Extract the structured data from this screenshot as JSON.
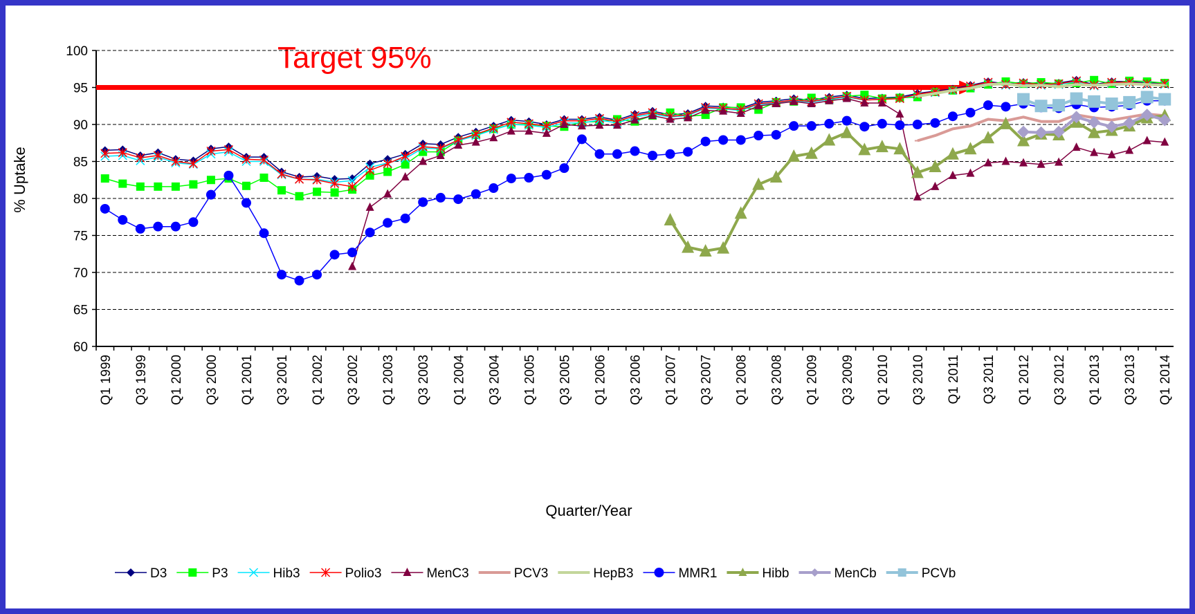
{
  "chart_data": {
    "type": "line",
    "annotation": "Target 95%",
    "target": 95,
    "x_label": "Quarter/Year",
    "y_label": "% Uptake",
    "ylim": [
      60,
      100
    ],
    "yticks": [
      60,
      65,
      70,
      75,
      80,
      85,
      90,
      95,
      100
    ],
    "grid": true,
    "legend": "bottom",
    "categories": [
      "Q1 1999",
      null,
      "Q3 1999",
      null,
      "Q1 2000",
      null,
      "Q3 2000",
      null,
      "Q1 2001",
      null,
      "Q3 2001",
      null,
      "Q1 2002",
      null,
      "Q3 2002",
      null,
      "Q1 2003",
      null,
      "Q3 2003",
      null,
      "Q1 2004",
      null,
      "Q3 2004",
      null,
      "Q1 2005",
      null,
      "Q3 2005",
      null,
      "Q1 2006",
      null,
      "Q3 2006",
      null,
      "Q1 2007",
      null,
      "Q3 2007",
      null,
      "Q1 2008",
      null,
      "Q3 2008",
      null,
      "Q1 2009",
      null,
      "Q3 2009",
      null,
      "Q1 2010",
      null,
      "Q3 2010",
      null,
      "Q1 2011",
      null,
      "Q3 2011",
      null,
      "Q1 2012",
      null,
      "Q3 2012",
      null,
      "Q1 2013",
      null,
      "Q3 2013",
      null,
      "Q1 2014"
    ],
    "series": [
      {
        "name": "D3",
        "color": "#000080",
        "marker": "diamond",
        "width": 1.5,
        "values": [
          86.5,
          86.6,
          85.8,
          86.2,
          85.3,
          85.1,
          86.7,
          87.0,
          85.6,
          85.6,
          83.6,
          82.9,
          83.0,
          82.6,
          82.7,
          84.7,
          85.3,
          86.0,
          87.4,
          87.3,
          88.3,
          89.0,
          89.8,
          90.6,
          90.4,
          90.0,
          90.7,
          90.7,
          91.0,
          90.6,
          91.4,
          91.8,
          91.3,
          91.5,
          92.5,
          92.4,
          92.2,
          93.0,
          93.2,
          93.5,
          93.3,
          93.7,
          94.0,
          93.5,
          93.6,
          93.7,
          94.2,
          94.5,
          94.8,
          95.3,
          95.8,
          95.5,
          95.7,
          95.5,
          95.6,
          96.0,
          95.4,
          95.8,
          95.8,
          95.6,
          95.6
        ]
      },
      {
        "name": "P3",
        "color": "#00ff00",
        "marker": "square",
        "width": 1.5,
        "values": [
          82.7,
          82.0,
          81.6,
          81.6,
          81.6,
          81.9,
          82.5,
          82.7,
          81.7,
          82.8,
          81.1,
          80.3,
          80.9,
          80.8,
          81.2,
          83.1,
          83.6,
          84.6,
          86.3,
          86.3,
          87.8,
          88.6,
          89.4,
          90.0,
          90.0,
          89.8,
          89.7,
          90.3,
          90.4,
          90.7,
          90.4,
          91.2,
          91.6,
          91.1,
          91.3,
          92.3,
          92.3,
          92.0,
          93.0,
          93.1,
          93.6,
          93.3,
          93.8,
          94.0,
          93.5,
          93.6,
          93.7,
          94.4,
          94.6,
          94.9,
          95.4,
          95.8,
          95.5,
          95.7,
          95.5,
          95.6,
          96.0,
          95.5,
          95.9,
          95.8,
          95.6
        ]
      },
      {
        "name": "Hib3",
        "color": "#00e5ff",
        "marker": "x",
        "width": 1.5,
        "values": [
          85.7,
          85.8,
          85.1,
          85.6,
          84.8,
          84.6,
          86.0,
          86.3,
          85.0,
          85.0,
          83.2,
          82.6,
          82.6,
          82.2,
          82.4,
          84.2,
          84.8,
          85.4,
          86.8,
          86.7,
          87.8,
          88.5,
          89.3,
          90.0,
          89.9,
          89.6,
          90.2,
          90.2,
          90.6,
          90.2,
          91.0,
          91.4,
          91.0,
          91.2,
          92.2,
          92.1,
          91.9,
          92.7,
          92.9,
          93.2,
          93.0,
          93.4,
          93.7,
          93.3,
          93.4,
          93.5,
          94.0,
          94.3,
          94.6,
          95.1,
          95.6,
          95.3,
          95.5,
          95.3,
          95.4,
          95.8,
          95.2,
          95.6,
          95.6,
          95.4,
          95.4
        ]
      },
      {
        "name": "Polio3",
        "color": "#ff0000",
        "marker": "star",
        "width": 1.5,
        "values": [
          86.1,
          86.2,
          85.5,
          85.8,
          85.0,
          84.7,
          86.4,
          86.6,
          85.3,
          85.2,
          83.3,
          82.6,
          82.5,
          82.0,
          81.6,
          83.8,
          84.7,
          85.7,
          87.0,
          86.8,
          87.9,
          88.7,
          89.5,
          90.3,
          90.1,
          89.8,
          90.5,
          90.5,
          90.8,
          90.4,
          91.2,
          91.6,
          91.1,
          91.3,
          92.3,
          92.2,
          92.0,
          92.8,
          93.0,
          93.3,
          93.1,
          93.5,
          93.8,
          93.3,
          93.4,
          93.5,
          94.1,
          94.4,
          94.7,
          95.2,
          95.7,
          95.4,
          95.6,
          95.4,
          95.5,
          95.9,
          95.3,
          95.7,
          95.7,
          95.5,
          95.5
        ]
      },
      {
        "name": "MenC3",
        "color": "#800040",
        "marker": "triangle",
        "width": 1.5,
        "values": [
          null,
          null,
          null,
          null,
          null,
          null,
          null,
          null,
          null,
          null,
          null,
          null,
          null,
          null,
          70.8,
          78.8,
          80.6,
          82.9,
          85.0,
          85.8,
          87.2,
          87.6,
          88.2,
          89.1,
          89.1,
          88.8,
          90.0,
          89.8,
          89.9,
          89.9,
          90.6,
          91.2,
          90.7,
          90.9,
          91.9,
          91.8,
          91.5,
          92.5,
          92.8,
          93.1,
          92.8,
          93.2,
          93.5,
          92.9,
          92.9,
          91.4,
          80.2,
          81.6,
          83.1,
          83.4,
          84.8,
          85.0,
          84.8,
          84.6,
          84.9,
          86.9,
          86.2,
          85.9,
          86.5,
          87.8,
          87.6
        ]
      },
      {
        "name": "PCV3",
        "color": "#d99a96",
        "marker": "dash",
        "width": 4,
        "values": [
          null,
          null,
          null,
          null,
          null,
          null,
          null,
          null,
          null,
          null,
          null,
          null,
          null,
          null,
          null,
          null,
          null,
          null,
          null,
          null,
          null,
          null,
          null,
          null,
          null,
          null,
          null,
          null,
          null,
          null,
          null,
          null,
          null,
          null,
          null,
          null,
          null,
          null,
          null,
          null,
          null,
          null,
          null,
          null,
          null,
          null,
          87.8,
          88.5,
          89.4,
          89.8,
          90.7,
          90.5,
          91.0,
          90.4,
          90.4,
          91.3,
          90.9,
          90.6,
          91.0,
          91.4,
          91.2
        ]
      },
      {
        "name": "HepB3",
        "color": "#c3d69b",
        "marker": "dash",
        "width": 4,
        "values": [
          null,
          null,
          null,
          null,
          null,
          null,
          null,
          null,
          null,
          null,
          null,
          null,
          null,
          null,
          null,
          null,
          null,
          null,
          null,
          null,
          null,
          null,
          null,
          null,
          null,
          null,
          null,
          null,
          null,
          null,
          null,
          null,
          null,
          null,
          null,
          null,
          null,
          null,
          null,
          null,
          null,
          null,
          null,
          null,
          null,
          null,
          93.8,
          94.2,
          94.6,
          94.9,
          95.4,
          95.5,
          95.2,
          95.3,
          95.1,
          95.4,
          95.3,
          95.4,
          95.5,
          95.4,
          95.3
        ]
      },
      {
        "name": "MMR1",
        "color": "#0000ff",
        "marker": "circle",
        "width": 1.5,
        "values": [
          78.6,
          77.1,
          75.9,
          76.2,
          76.2,
          76.8,
          80.5,
          83.1,
          79.4,
          75.3,
          69.7,
          68.9,
          69.7,
          72.4,
          72.7,
          75.4,
          76.7,
          77.3,
          79.5,
          80.1,
          79.9,
          80.6,
          81.4,
          82.7,
          82.8,
          83.2,
          84.1,
          88.0,
          86.0,
          86.0,
          86.4,
          85.8,
          86.0,
          86.3,
          87.7,
          87.9,
          87.9,
          88.5,
          88.6,
          89.8,
          89.8,
          90.1,
          90.5,
          89.7,
          90.1,
          89.9,
          90.0,
          90.2,
          91.1,
          91.6,
          92.6,
          92.4,
          92.8,
          92.3,
          92.2,
          92.7,
          92.3,
          92.4,
          92.6,
          93.2,
          93.2
        ]
      },
      {
        "name": "Hibb",
        "color": "#8ea84c",
        "marker": "triangle",
        "width": 4,
        "values": [
          null,
          null,
          null,
          null,
          null,
          null,
          null,
          null,
          null,
          null,
          null,
          null,
          null,
          null,
          null,
          null,
          null,
          null,
          null,
          null,
          null,
          null,
          null,
          null,
          null,
          null,
          null,
          null,
          null,
          null,
          null,
          null,
          77.1,
          73.4,
          72.9,
          73.3,
          78.0,
          81.9,
          82.9,
          85.7,
          86.1,
          87.9,
          88.9,
          86.6,
          87.0,
          86.7,
          83.5,
          84.3,
          86.0,
          86.7,
          88.2,
          90.1,
          87.8,
          88.7,
          88.6,
          90.3,
          88.9,
          89.2,
          89.8,
          90.9,
          91.2
        ]
      },
      {
        "name": "MenCb",
        "color": "#a79fcb",
        "marker": "diamond",
        "width": 4,
        "values": [
          null,
          null,
          null,
          null,
          null,
          null,
          null,
          null,
          null,
          null,
          null,
          null,
          null,
          null,
          null,
          null,
          null,
          null,
          null,
          null,
          null,
          null,
          null,
          null,
          null,
          null,
          null,
          null,
          null,
          null,
          null,
          null,
          null,
          null,
          null,
          null,
          null,
          null,
          null,
          null,
          null,
          null,
          null,
          null,
          null,
          null,
          null,
          null,
          null,
          null,
          null,
          null,
          89.0,
          88.9,
          89.0,
          91.0,
          90.3,
          89.7,
          90.2,
          91.3,
          90.6
        ]
      },
      {
        "name": "PCVb",
        "color": "#93c4da",
        "marker": "square",
        "width": 4,
        "values": [
          null,
          null,
          null,
          null,
          null,
          null,
          null,
          null,
          null,
          null,
          null,
          null,
          null,
          null,
          null,
          null,
          null,
          null,
          null,
          null,
          null,
          null,
          null,
          null,
          null,
          null,
          null,
          null,
          null,
          null,
          null,
          null,
          null,
          null,
          null,
          null,
          null,
          null,
          null,
          null,
          null,
          null,
          null,
          null,
          null,
          null,
          null,
          null,
          null,
          null,
          null,
          null,
          93.4,
          92.5,
          92.6,
          93.5,
          93.1,
          92.8,
          93.0,
          93.7,
          93.4
        ]
      }
    ]
  }
}
